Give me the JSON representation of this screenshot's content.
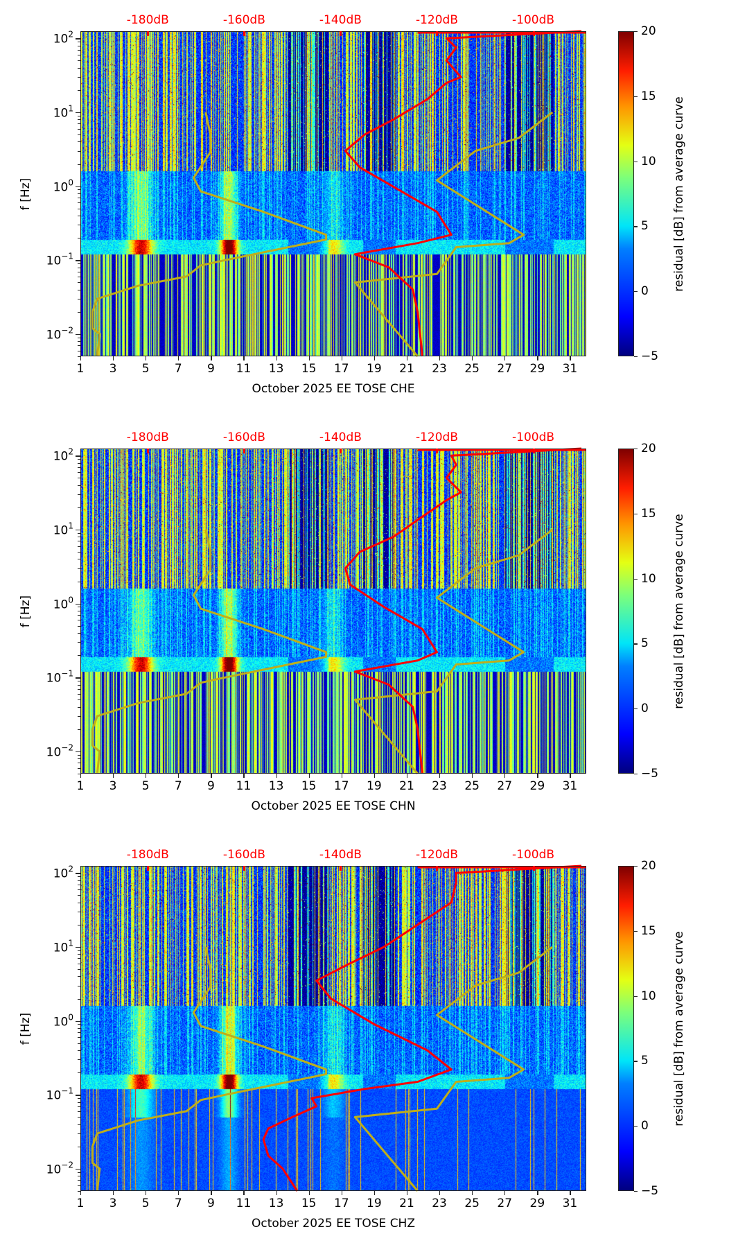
{
  "chart_data": [
    {
      "type": "heatmap",
      "channel": "CHE",
      "xlabel": "October 2025 EE TOSE  CHE",
      "ylabel": "f [Hz]",
      "colorbar_label": "residual [dB] from average curve",
      "colorbar_range": [
        -5,
        20
      ],
      "colorbar_ticks": [
        "20",
        "15",
        "10",
        "5",
        "0",
        "−5"
      ],
      "colorbar_tick_values": [
        20,
        15,
        10,
        5,
        0,
        -5
      ],
      "x_range": [
        1,
        32
      ],
      "x_ticks": [
        1,
        3,
        5,
        7,
        9,
        11,
        13,
        15,
        17,
        19,
        21,
        23,
        25,
        27,
        29,
        31
      ],
      "y_scale": "log",
      "y_range": [
        0.005,
        125
      ],
      "y_ticks": [
        {
          "value": 0.01,
          "base": "10",
          "exp": "−2"
        },
        {
          "value": 0.1,
          "base": "10",
          "exp": "−1"
        },
        {
          "value": 1,
          "base": "10",
          "exp": "0"
        },
        {
          "value": 10,
          "base": "10",
          "exp": "1"
        },
        {
          "value": 100,
          "base": "10",
          "exp": "2"
        }
      ],
      "db_axis_labels": [
        "-180dB",
        "-160dB",
        "-140dB",
        "-120dB",
        "-100dB"
      ],
      "db_axis_values": [
        -180,
        -160,
        -140,
        -120,
        -100
      ],
      "db_axis_range": [
        -194,
        -89
      ],
      "noise_model_curve": {
        "name": "noise model",
        "color": "#bfae1a",
        "points_db_f": [
          [
            -190.5,
            0.005
          ],
          [
            -190.0,
            0.01
          ],
          [
            -191.5,
            0.012
          ],
          [
            -191.5,
            0.02
          ],
          [
            -190.5,
            0.03
          ],
          [
            -182,
            0.045
          ],
          [
            -172,
            0.06
          ],
          [
            -169,
            0.085
          ],
          [
            -164,
            0.1
          ],
          [
            -143,
            0.19
          ],
          [
            -143,
            0.22
          ],
          [
            -156,
            0.45
          ],
          [
            -169,
            0.85
          ],
          [
            -170.5,
            1.3
          ],
          [
            -167,
            2.9
          ],
          [
            -167,
            5.0
          ],
          [
            -168,
            10
          ]
        ]
      },
      "noise_model_curve_high": {
        "name": "noise model (high)",
        "color": "#bfae1a",
        "points_db_f": [
          [
            -124,
            0.005
          ],
          [
            -137,
            0.05
          ],
          [
            -120,
            0.065
          ],
          [
            -116,
            0.15
          ],
          [
            -105,
            0.17
          ],
          [
            -102,
            0.22
          ],
          [
            -120,
            1.2
          ],
          [
            -112,
            3.0
          ],
          [
            -103,
            4.5
          ],
          [
            -96,
            10
          ]
        ]
      },
      "average_curve": {
        "name": "average residual curve",
        "color": "#ff0000",
        "points_db_f": [
          [
            -123,
            0.005
          ],
          [
            -124,
            0.02
          ],
          [
            -125,
            0.04
          ],
          [
            -130,
            0.08
          ],
          [
            -137,
            0.12
          ],
          [
            -124,
            0.17
          ],
          [
            -117,
            0.22
          ],
          [
            -120,
            0.45
          ],
          [
            -128,
            0.9
          ],
          [
            -136,
            1.8
          ],
          [
            -139,
            3
          ],
          [
            -135,
            5
          ],
          [
            -129,
            8
          ],
          [
            -122,
            15
          ],
          [
            -118,
            25
          ],
          [
            -115,
            30
          ],
          [
            -118,
            50
          ],
          [
            -116,
            75
          ],
          [
            -118,
            100
          ],
          [
            -90,
            125
          ]
        ]
      }
    },
    {
      "type": "heatmap",
      "channel": "CHN",
      "xlabel": "October 2025 EE TOSE  CHN",
      "ylabel": "f [Hz]",
      "colorbar_label": "residual [dB] from average curve",
      "colorbar_range": [
        -5,
        20
      ],
      "colorbar_ticks": [
        "20",
        "15",
        "10",
        "5",
        "0",
        "−5"
      ],
      "colorbar_tick_values": [
        20,
        15,
        10,
        5,
        0,
        -5
      ],
      "x_range": [
        1,
        32
      ],
      "x_ticks": [
        1,
        3,
        5,
        7,
        9,
        11,
        13,
        15,
        17,
        19,
        21,
        23,
        25,
        27,
        29,
        31
      ],
      "y_scale": "log",
      "y_range": [
        0.005,
        125
      ],
      "y_ticks": [
        {
          "value": 0.01,
          "base": "10",
          "exp": "−2"
        },
        {
          "value": 0.1,
          "base": "10",
          "exp": "−1"
        },
        {
          "value": 1,
          "base": "10",
          "exp": "0"
        },
        {
          "value": 10,
          "base": "10",
          "exp": "1"
        },
        {
          "value": 100,
          "base": "10",
          "exp": "2"
        }
      ],
      "db_axis_labels": [
        "-180dB",
        "-160dB",
        "-140dB",
        "-120dB",
        "-100dB"
      ],
      "db_axis_values": [
        -180,
        -160,
        -140,
        -120,
        -100
      ],
      "db_axis_range": [
        -194,
        -89
      ],
      "noise_model_curve": {
        "name": "noise model",
        "color": "#bfae1a",
        "points_db_f": [
          [
            -190.5,
            0.005
          ],
          [
            -190.0,
            0.01
          ],
          [
            -191.5,
            0.012
          ],
          [
            -191.5,
            0.02
          ],
          [
            -190.5,
            0.03
          ],
          [
            -182,
            0.045
          ],
          [
            -172,
            0.06
          ],
          [
            -169,
            0.085
          ],
          [
            -164,
            0.1
          ],
          [
            -143,
            0.19
          ],
          [
            -143,
            0.22
          ],
          [
            -156,
            0.45
          ],
          [
            -169,
            0.85
          ],
          [
            -170.5,
            1.3
          ],
          [
            -167,
            2.9
          ],
          [
            -167,
            5.0
          ],
          [
            -168,
            10
          ]
        ]
      },
      "noise_model_curve_high": {
        "name": "noise model (high)",
        "color": "#bfae1a",
        "points_db_f": [
          [
            -124,
            0.005
          ],
          [
            -137,
            0.05
          ],
          [
            -120,
            0.065
          ],
          [
            -116,
            0.15
          ],
          [
            -105,
            0.17
          ],
          [
            -102,
            0.22
          ],
          [
            -120,
            1.2
          ],
          [
            -112,
            3.0
          ],
          [
            -103,
            4.5
          ],
          [
            -96,
            10
          ]
        ]
      },
      "average_curve": {
        "name": "average residual curve",
        "color": "#ff0000",
        "points_db_f": [
          [
            -123,
            0.005
          ],
          [
            -124,
            0.02
          ],
          [
            -125,
            0.04
          ],
          [
            -130,
            0.08
          ],
          [
            -137,
            0.12
          ],
          [
            -124,
            0.17
          ],
          [
            -120,
            0.22
          ],
          [
            -123,
            0.45
          ],
          [
            -131,
            0.9
          ],
          [
            -138,
            1.8
          ],
          [
            -139,
            3
          ],
          [
            -136,
            5
          ],
          [
            -129,
            8
          ],
          [
            -123,
            15
          ],
          [
            -118,
            25
          ],
          [
            -115,
            32
          ],
          [
            -118,
            50
          ],
          [
            -116,
            75
          ],
          [
            -117,
            100
          ],
          [
            -90,
            125
          ]
        ]
      }
    },
    {
      "type": "heatmap",
      "channel": "CHZ",
      "xlabel": "October 2025 EE TOSE  CHZ",
      "ylabel": "f [Hz]",
      "colorbar_label": "residual [dB] from average curve",
      "colorbar_range": [
        -5,
        20
      ],
      "colorbar_ticks": [
        "20",
        "15",
        "10",
        "5",
        "0",
        "−5"
      ],
      "colorbar_tick_values": [
        20,
        15,
        10,
        5,
        0,
        -5
      ],
      "x_range": [
        1,
        32
      ],
      "x_ticks": [
        1,
        3,
        5,
        7,
        9,
        11,
        13,
        15,
        17,
        19,
        21,
        23,
        25,
        27,
        29,
        31
      ],
      "y_scale": "log",
      "y_range": [
        0.005,
        125
      ],
      "y_ticks": [
        {
          "value": 0.01,
          "base": "10",
          "exp": "−2"
        },
        {
          "value": 0.1,
          "base": "10",
          "exp": "−1"
        },
        {
          "value": 1,
          "base": "10",
          "exp": "0"
        },
        {
          "value": 10,
          "base": "10",
          "exp": "1"
        },
        {
          "value": 100,
          "base": "10",
          "exp": "2"
        }
      ],
      "db_axis_labels": [
        "-180dB",
        "-160dB",
        "-140dB",
        "-120dB",
        "-100dB"
      ],
      "db_axis_values": [
        -180,
        -160,
        -140,
        -120,
        -100
      ],
      "db_axis_range": [
        -194,
        -89
      ],
      "noise_model_curve": {
        "name": "noise model",
        "color": "#bfae1a",
        "points_db_f": [
          [
            -190.5,
            0.005
          ],
          [
            -190.0,
            0.01
          ],
          [
            -191.5,
            0.012
          ],
          [
            -191.5,
            0.02
          ],
          [
            -190.5,
            0.03
          ],
          [
            -182,
            0.045
          ],
          [
            -172,
            0.06
          ],
          [
            -169,
            0.085
          ],
          [
            -164,
            0.1
          ],
          [
            -143,
            0.19
          ],
          [
            -143,
            0.22
          ],
          [
            -156,
            0.45
          ],
          [
            -169,
            0.85
          ],
          [
            -170.5,
            1.3
          ],
          [
            -167,
            2.9
          ],
          [
            -167,
            5.0
          ],
          [
            -168,
            10
          ]
        ]
      },
      "noise_model_curve_high": {
        "name": "noise model (high)",
        "color": "#bfae1a",
        "points_db_f": [
          [
            -124,
            0.005
          ],
          [
            -137,
            0.05
          ],
          [
            -120,
            0.065
          ],
          [
            -116,
            0.15
          ],
          [
            -105,
            0.17
          ],
          [
            -102,
            0.22
          ],
          [
            -120,
            1.2
          ],
          [
            -112,
            3.0
          ],
          [
            -103,
            4.5
          ],
          [
            -96,
            10
          ]
        ]
      },
      "average_curve": {
        "name": "average residual curve",
        "color": "#ff0000",
        "points_db_f": [
          [
            -149,
            0.005
          ],
          [
            -152,
            0.01
          ],
          [
            -155,
            0.015
          ],
          [
            -156,
            0.025
          ],
          [
            -155,
            0.035
          ],
          [
            -150,
            0.05
          ],
          [
            -145,
            0.07
          ],
          [
            -146,
            0.09
          ],
          [
            -135,
            0.12
          ],
          [
            -124,
            0.15
          ],
          [
            -117,
            0.22
          ],
          [
            -122,
            0.4
          ],
          [
            -133,
            0.9
          ],
          [
            -142,
            2.0
          ],
          [
            -145,
            3.5
          ],
          [
            -138,
            6
          ],
          [
            -131,
            10
          ],
          [
            -124,
            20
          ],
          [
            -117,
            40
          ],
          [
            -116,
            75
          ],
          [
            -116,
            100
          ],
          [
            -90,
            125
          ]
        ]
      }
    }
  ]
}
